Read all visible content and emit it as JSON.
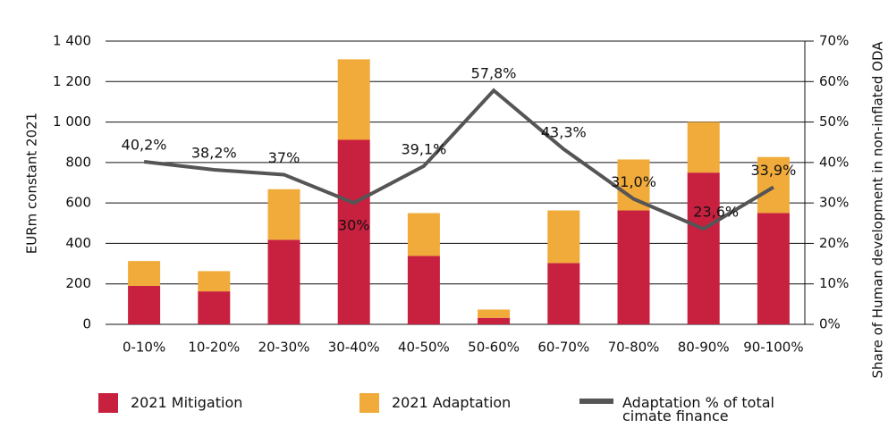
{
  "chart_data": {
    "type": "bar",
    "ylabel": "EURm constant 2021",
    "y2label": "Share of Human development in non-inflated ODA",
    "categories": [
      "0-10%",
      "10-20%",
      "20-30%",
      "30-40%",
      "40-50%",
      "50-60%",
      "60-70%",
      "70-80%",
      "80-90%",
      "90-100%"
    ],
    "series": [
      {
        "name": "2021 Mitigation",
        "type": "bar",
        "color": "#c8203f",
        "values": [
          190,
          163,
          418,
          912,
          338,
          32,
          303,
          563,
          750,
          550
        ]
      },
      {
        "name": "2021 Adaptation",
        "type": "bar",
        "color": "#f0ab3a",
        "values": [
          123,
          100,
          250,
          398,
          212,
          41,
          260,
          252,
          250,
          277
        ]
      },
      {
        "name": "Adaptation % of total cimate finance",
        "type": "line",
        "axis": "y2",
        "color": "#555555",
        "values": [
          40.2,
          38.2,
          37,
          30,
          39.1,
          57.8,
          43.3,
          31.0,
          23.6,
          33.9
        ],
        "value_labels": [
          "40,2%",
          "38,2%",
          "37%",
          "30%",
          "39,1%",
          "57,8%",
          "43,3%",
          "31,0%",
          "23,6%",
          "33,9%"
        ]
      }
    ],
    "stacked": true,
    "ylim": [
      0,
      1400
    ],
    "yticks": [
      0,
      {
        "value": 200,
        "label": "200"
      },
      {
        "value": 400,
        "label": "400"
      },
      {
        "value": 600,
        "label": "600"
      },
      {
        "value": 800,
        "label": "800"
      },
      {
        "value": 1000,
        "label": "1 000"
      },
      {
        "value": 1200,
        "label": "1 200"
      },
      {
        "value": 1400,
        "label": "1 400"
      }
    ],
    "y2lim": [
      0,
      70
    ],
    "y2ticks": [
      {
        "value": 0,
        "label": "0%"
      },
      {
        "value": 10,
        "label": "10%"
      },
      {
        "value": 20,
        "label": "20%"
      },
      {
        "value": 30,
        "label": "30%"
      },
      {
        "value": 40,
        "label": "40%"
      },
      {
        "value": 50,
        "label": "50%"
      },
      {
        "value": 60,
        "label": "60%"
      },
      {
        "value": 70,
        "label": "70%"
      }
    ],
    "grid": true,
    "legend": "bottom"
  }
}
